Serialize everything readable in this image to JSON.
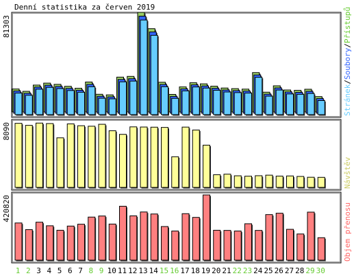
{
  "chart_data": [
    {
      "panel": "pages",
      "type": "bar",
      "title": "Denní statistika za červen 2019",
      "ymax_label": "81303",
      "legend": [
        {
          "text": "Stránek",
          "color": "#66ccff"
        },
        {
          "text": "/",
          "color": "#000000"
        },
        {
          "text": "Soubory",
          "color": "#3366ff"
        },
        {
          "text": "/",
          "color": "#000000"
        },
        {
          "text": "Přístupů",
          "color": "#66cc33"
        }
      ],
      "ylim": [
        0,
        81303
      ],
      "series": [
        {
          "name": "Přístupů",
          "color": "#99cc66",
          "values": [
            18700,
            16800,
            21900,
            23500,
            22500,
            20900,
            19300,
            24400,
            14400,
            13900,
            28400,
            29000,
            81303,
            68000,
            24200,
            14300,
            20400,
            23800,
            22900,
            21000,
            19500,
            19000,
            18600,
            32100,
            16100,
            21300,
            17900,
            17600,
            18500,
            12500
          ]
        },
        {
          "name": "Soubory",
          "color": "#3366ff",
          "values": [
            18200,
            16300,
            21400,
            22900,
            21900,
            20300,
            18800,
            23600,
            13900,
            13400,
            27600,
            28200,
            79300,
            66400,
            23500,
            13800,
            19900,
            23200,
            22300,
            20400,
            19000,
            18500,
            18100,
            31300,
            15600,
            20700,
            17400,
            17100,
            17900,
            12000
          ]
        },
        {
          "name": "Stránek",
          "color": "#66ccff",
          "values": [
            17600,
            15800,
            20800,
            22300,
            21300,
            19700,
            18300,
            22800,
            13400,
            12900,
            26800,
            27400,
            77300,
            64800,
            22800,
            13300,
            19400,
            22600,
            21700,
            19900,
            18500,
            18000,
            17600,
            30500,
            15100,
            20100,
            16900,
            16600,
            17300,
            11500
          ]
        }
      ]
    },
    {
      "panel": "visits",
      "type": "bar",
      "ymax_label": "8090",
      "legend": [
        {
          "text": "Návštěv",
          "color": "#cccc66"
        }
      ],
      "ylim": [
        0,
        8090
      ],
      "series": [
        {
          "name": "Návštěv",
          "color": "#ffff99",
          "values": [
            7950,
            7700,
            7980,
            7920,
            6150,
            7880,
            7650,
            7590,
            7830,
            7030,
            6580,
            7510,
            7490,
            7470,
            7440,
            3800,
            7480,
            7120,
            5240,
            1570,
            1640,
            1440,
            1390,
            1450,
            1520,
            1400,
            1420,
            1360,
            1260,
            1250
          ]
        }
      ]
    },
    {
      "panel": "kbytes",
      "type": "bar",
      "ymax_label": "420820",
      "legend": [
        {
          "text": "Objem přenosu",
          "color": "#ff6666"
        }
      ],
      "ylim": [
        0,
        420820
      ],
      "series": [
        {
          "name": "Objem přenosu",
          "color": "#ff8080",
          "values": [
            240000,
            197000,
            245000,
            222000,
            193000,
            220000,
            232000,
            278000,
            285000,
            233000,
            348000,
            286000,
            311000,
            298000,
            217000,
            188000,
            300000,
            276000,
            420820,
            193000,
            192000,
            188000,
            235000,
            192000,
            294000,
            303000,
            199000,
            169000,
            310000,
            145000
          ]
        }
      ]
    }
  ],
  "days": [
    "1",
    "2",
    "3",
    "4",
    "5",
    "6",
    "7",
    "8",
    "9",
    "10",
    "11",
    "12",
    "13",
    "14",
    "15",
    "16",
    "17",
    "18",
    "19",
    "20",
    "21",
    "22",
    "23",
    "24",
    "25",
    "26",
    "27",
    "28",
    "29",
    "30"
  ],
  "weekend_days": [
    1,
    2,
    8,
    9,
    15,
    16,
    22,
    23,
    29,
    30
  ],
  "colors": {
    "weekday": "#000000",
    "weekend": "#66cc33",
    "background": "#ffffff",
    "frame": "#000000"
  }
}
